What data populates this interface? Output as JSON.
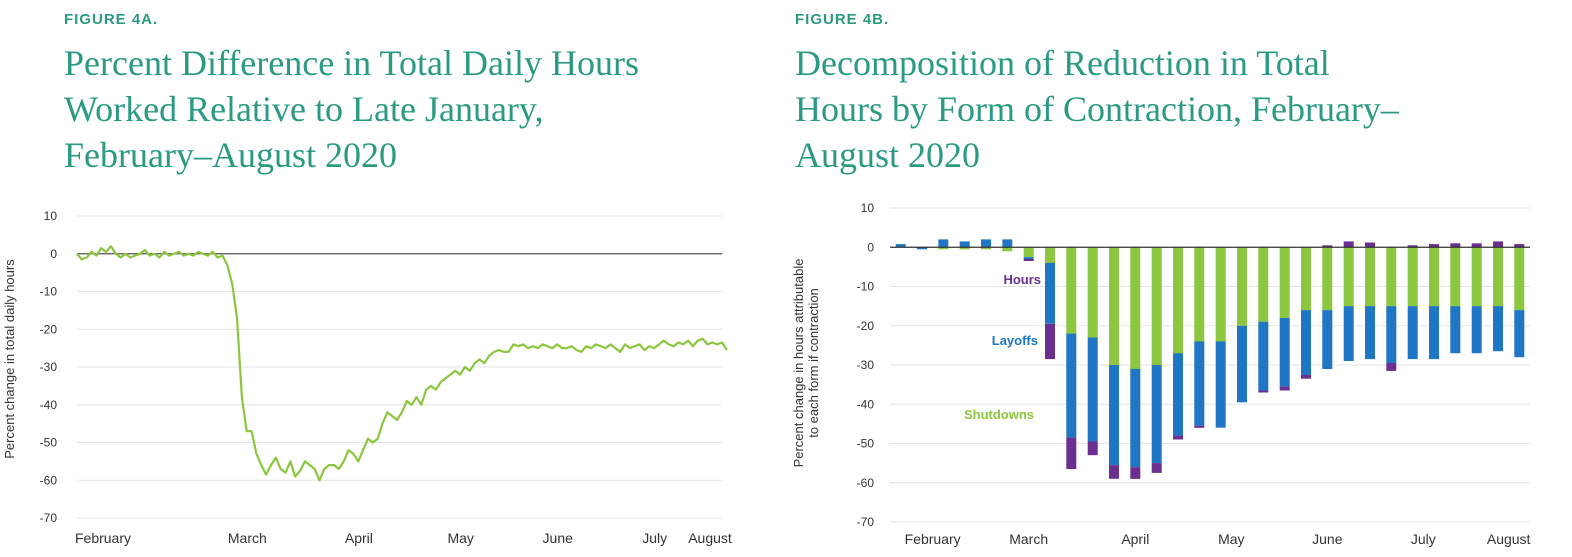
{
  "figure_a": {
    "label": "FIGURE 4A.",
    "title_lines": [
      "Percent Difference in Total Daily Hours",
      "Worked Relative to Late January,",
      "February–August 2020"
    ]
  },
  "figure_b": {
    "label": "FIGURE 4B.",
    "title_lines": [
      "Decomposition of Reduction in Total",
      "Hours by Form of Contraction, February–",
      "August 2020"
    ]
  },
  "colors": {
    "teal": "#2a9a83",
    "line_green": "#8cc63f",
    "shutdowns": "#8dc63f",
    "layoffs": "#1f77c4",
    "hours": "#6b2f8f",
    "axis_text": "#333333"
  },
  "chart_data": [
    {
      "type": "line",
      "ylabel": "Percent change in total daily hours",
      "xlabel": "",
      "ylim": [
        -70,
        10
      ],
      "yticks": [
        10,
        0,
        -10,
        -20,
        -30,
        -40,
        -50,
        -60,
        -70
      ],
      "xlim": [
        0,
        133
      ],
      "xticks": [
        {
          "label": "February",
          "x": 7
        },
        {
          "label": "March",
          "x": 31
        },
        {
          "label": "April",
          "x": 54
        },
        {
          "label": "May",
          "x": 75
        },
        {
          "label": "June",
          "x": 95
        },
        {
          "label": "July",
          "x": 115
        },
        {
          "label": "August",
          "x": 132
        }
      ],
      "grid": true,
      "series": [
        {
          "values": [
            0,
            -1.5,
            -1,
            0.5,
            -0.5,
            1.5,
            0.5,
            2,
            0,
            -1,
            0,
            -1,
            -0.5,
            0,
            1,
            -0.5,
            0,
            -1,
            0.5,
            -0.5,
            0,
            0.5,
            -0.5,
            0,
            -0.5,
            0.5,
            0,
            -0.5,
            0.5,
            -1,
            -0.5,
            -3,
            -8,
            -17,
            -38,
            -47,
            -47,
            -53,
            -56,
            -58.5,
            -56,
            -54,
            -57,
            -58,
            -55,
            -59,
            -57.5,
            -55,
            -56,
            -57,
            -60,
            -57,
            -56,
            -56,
            -57,
            -55,
            -52,
            -53,
            -55,
            -52,
            -49,
            -50,
            -49,
            -45,
            -42,
            -43,
            -44,
            -42,
            -39,
            -40,
            -38,
            -40,
            -36,
            -35,
            -36,
            -34,
            -33,
            -32,
            -31,
            -32,
            -30,
            -31,
            -29,
            -28,
            -29,
            -27,
            -26,
            -25.5,
            -26,
            -26,
            -24,
            -24.5,
            -24,
            -25,
            -24.5,
            -25,
            -24,
            -24.5,
            -25,
            -24,
            -25,
            -25,
            -24.5,
            -25.5,
            -26,
            -24.5,
            -25,
            -24,
            -24.5,
            -25,
            -24,
            -25,
            -26,
            -24,
            -25,
            -24.5,
            -24,
            -25.5,
            -24.5,
            -25,
            -24,
            -23,
            -24,
            -24.5,
            -23.5,
            -24,
            -23,
            -24.5,
            -23,
            -22.5,
            -24,
            -23.5,
            -24,
            -23.5,
            -25.5
          ]
        }
      ]
    },
    {
      "type": "bar",
      "stacked": true,
      "ylabel": "Percent change in hours attributable to each form if contraction",
      "xlabel": "",
      "ylim": [
        -70,
        10
      ],
      "yticks": [
        10,
        0,
        -10,
        -20,
        -30,
        -40,
        -50,
        -60,
        -70
      ],
      "xticks": [
        {
          "label": "February",
          "x": 1.5
        },
        {
          "label": "March",
          "x": 6
        },
        {
          "label": "April",
          "x": 11
        },
        {
          "label": "May",
          "x": 15.5
        },
        {
          "label": "June",
          "x": 20
        },
        {
          "label": "July",
          "x": 24.5
        },
        {
          "label": "August",
          "x": 28.5
        }
      ],
      "grid": true,
      "series_labels": [
        "Hours",
        "Layoffs",
        "Shutdowns"
      ],
      "series": [
        {
          "name": "Shutdowns",
          "values": [
            0,
            0,
            -0.5,
            -0.5,
            -0.5,
            -1,
            -2.5,
            -4,
            -22,
            -23,
            -30,
            -31,
            -30,
            -27,
            -24,
            -24,
            -20,
            -19,
            -18,
            -16,
            -16,
            -15,
            -15,
            -15,
            -15,
            -15,
            -15,
            -15,
            -15,
            -16
          ]
        },
        {
          "name": "Layoffs",
          "values": [
            0.8,
            -0.5,
            2,
            1.5,
            2,
            2,
            -0.5,
            -15.5,
            -26.5,
            -26.5,
            -25.5,
            -25,
            -25,
            -21,
            -21.5,
            -22,
            -19.5,
            -17.5,
            -17.5,
            -16.5,
            -15,
            -14,
            -13.5,
            -14.5,
            -13.5,
            -13.5,
            -12,
            -12,
            -11.5,
            -12
          ]
        },
        {
          "name": "Hours",
          "values": [
            0,
            0,
            0,
            0,
            0,
            0,
            -0.5,
            -9,
            -8,
            -3.5,
            -3.5,
            -3,
            -2.5,
            -1,
            -0.5,
            0,
            0,
            -0.5,
            -1,
            -1,
            0.5,
            1.5,
            1.2,
            -2,
            0.5,
            0.8,
            1,
            1,
            1.5,
            0.8
          ]
        }
      ]
    }
  ]
}
